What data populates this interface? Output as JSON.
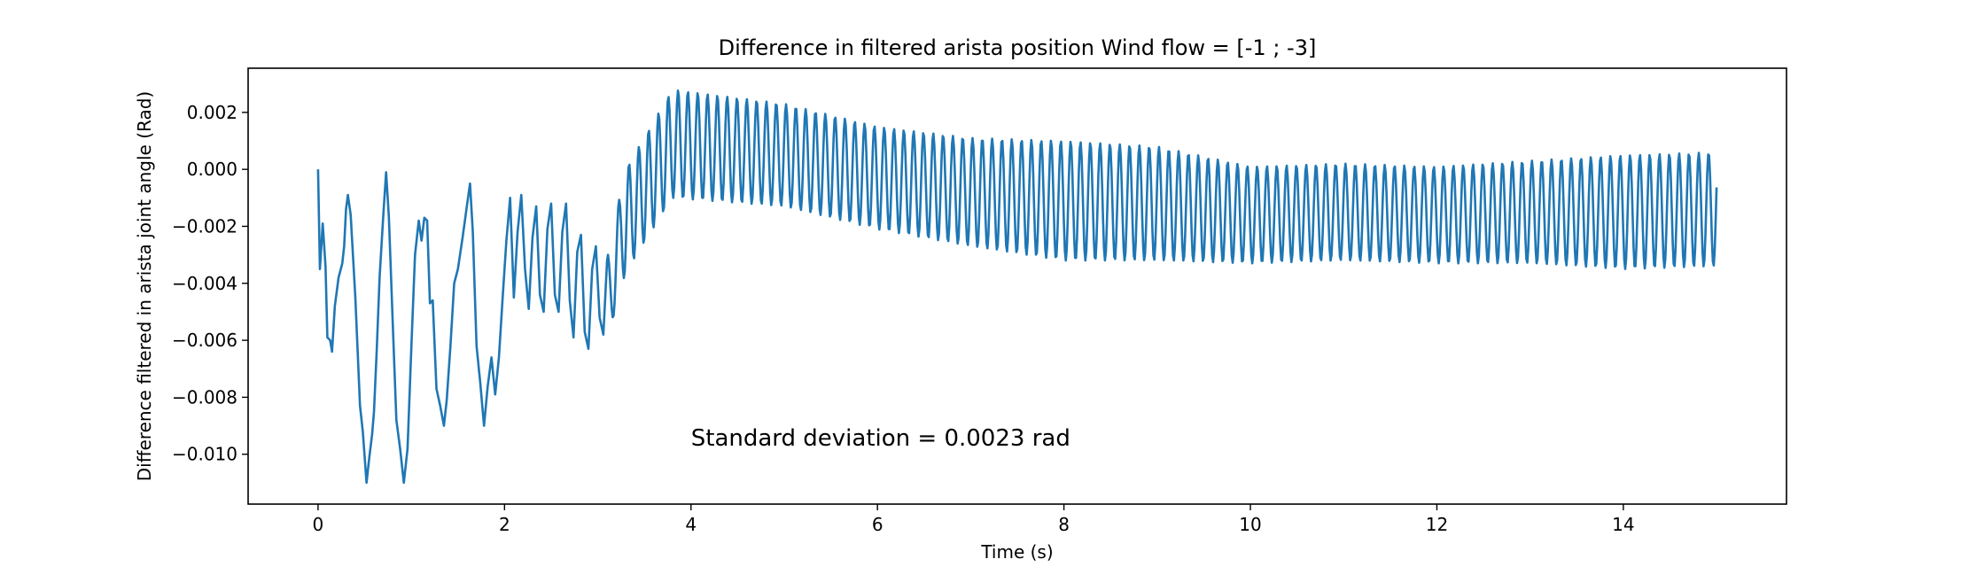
{
  "chart_data": {
    "type": "line",
    "title": "Difference in filtered arista position Wind flow = [-1 ; -3]",
    "xlabel": "Time (s)",
    "ylabel": "Difference filtered in arista joint angle (Rad)",
    "xlim": [
      -0.75,
      15.75
    ],
    "ylim": [
      -0.01175,
      0.00355
    ],
    "x_ticks": [
      0,
      2,
      4,
      6,
      8,
      10,
      12,
      14
    ],
    "x_tick_labels": [
      "0",
      "2",
      "4",
      "6",
      "8",
      "10",
      "12",
      "14"
    ],
    "y_ticks": [
      -0.01,
      -0.008,
      -0.006,
      -0.004,
      -0.002,
      0.0,
      0.002
    ],
    "y_tick_labels": [
      "−0.010",
      "−0.008",
      "−0.006",
      "−0.004",
      "−0.002",
      "0.000",
      "0.002"
    ],
    "grid": false,
    "annotations": [
      {
        "text": "Standard deviation = 0.0023 rad",
        "x": 4.0,
        "y": -0.0097
      }
    ],
    "series": [
      {
        "color": "#1f77b4",
        "sample_rate_hz": 100,
        "x": [
          0,
          15.0
        ],
        "oscillation": {
          "frequency_hz_by_time": [
            [
              0,
              7
            ],
            [
              3.1,
              7
            ],
            [
              3.3,
              9.5
            ],
            [
              15.0,
              9.5
            ]
          ],
          "center_by_time": [
            [
              3.1,
              -0.0045
            ],
            [
              3.3,
              -0.0018
            ],
            [
              3.8,
              0.0009
            ],
            [
              5.0,
              0.0005
            ],
            [
              6.0,
              -0.0003
            ],
            [
              7.0,
              -0.0008
            ],
            [
              8.0,
              -0.0011
            ],
            [
              9.0,
              -0.0012
            ],
            [
              10.0,
              -0.0016
            ],
            [
              11.0,
              -0.0015
            ],
            [
              12.0,
              -0.0016
            ],
            [
              13.0,
              -0.0015
            ],
            [
              14.0,
              -0.0015
            ],
            [
              15.0,
              -0.0014
            ]
          ],
          "amplitude_by_time": [
            [
              3.1,
              0.0015
            ],
            [
              3.3,
              0.0018
            ],
            [
              3.8,
              0.0019
            ],
            [
              5.0,
              0.0018
            ],
            [
              6.0,
              0.0018
            ],
            [
              7.0,
              0.0019
            ],
            [
              8.0,
              0.0021
            ],
            [
              9.0,
              0.002
            ],
            [
              10.0,
              0.0017
            ],
            [
              11.0,
              0.0017
            ],
            [
              12.0,
              0.0017
            ],
            [
              13.0,
              0.0018
            ],
            [
              14.0,
              0.002
            ],
            [
              15.0,
              0.002
            ]
          ]
        },
        "points": [
          [
            0.0,
            0.0
          ],
          [
            0.02,
            -0.0035
          ],
          [
            0.05,
            -0.002
          ],
          [
            0.08,
            -0.0035
          ],
          [
            0.1,
            -0.006
          ],
          [
            0.13,
            -0.0062
          ],
          [
            0.15,
            -0.0064
          ],
          [
            0.2,
            -0.0045
          ],
          [
            0.25,
            -0.0038
          ],
          [
            0.3,
            -0.0025
          ],
          [
            0.3,
            -0.0025
          ],
          [
            0.3,
            -0.0025
          ],
          [
            0.3,
            -0.0025
          ],
          [
            0.3,
            -0.0025
          ],
          [
            0.3,
            -0.0025
          ],
          [
            0.3,
            -0.0025
          ],
          [
            0.3,
            -0.0025
          ],
          [
            0.3,
            -0.0025
          ],
          [
            0.3,
            -0.0025
          ],
          [
            0.3,
            -0.0025
          ],
          [
            0.3,
            -0.0025
          ],
          [
            0.3,
            -0.0025
          ],
          [
            0.3,
            -0.0025
          ],
          [
            0.3,
            -0.0025
          ],
          [
            0.3,
            -0.0025
          ],
          [
            0.3,
            -0.0025
          ],
          [
            0.3,
            -0.0025
          ],
          [
            0.3,
            -0.0025
          ],
          [
            0.3,
            -0.0025
          ],
          [
            0.3,
            -0.0025
          ],
          [
            0.3,
            -0.0025
          ],
          [
            0.3,
            -0.0025
          ],
          [
            0.3,
            -0.0025
          ],
          [
            0.3,
            -0.0025
          ],
          [
            0.3,
            -0.0025
          ],
          [
            0.3,
            -0.0025
          ],
          [
            0.3,
            -0.0025
          ],
          [
            0.3,
            -0.0025
          ],
          [
            0.3,
            -0.0025
          ],
          [
            0.3,
            -0.0025
          ],
          [
            0.3,
            -0.0025
          ],
          [
            0.3,
            -0.0025
          ],
          [
            0.3,
            -0.0025
          ],
          [
            0.3,
            -0.0025
          ],
          [
            0.3,
            -0.0025
          ],
          [
            0.3,
            -0.0025
          ],
          [
            0.3,
            -0.0025
          ],
          [
            0.3,
            -0.0025
          ],
          [
            0.3,
            -0.0025
          ],
          [
            0.3,
            -0.0025
          ],
          [
            0.3,
            -0.0025
          ],
          [
            0.3,
            -0.0025
          ],
          [
            0.3,
            -0.0025
          ],
          [
            0.3,
            -0.0025
          ],
          [
            0.3,
            -0.0025
          ],
          [
            0.3,
            -0.0025
          ],
          [
            0.3,
            -0.0025
          ],
          [
            0.3,
            -0.0025
          ],
          [
            0.3,
            -0.0025
          ],
          [
            0.3,
            -0.0025
          ],
          [
            0.3,
            -0.0025
          ],
          [
            0.3,
            -0.0025
          ],
          [
            0.3,
            -0.0025
          ],
          [
            0.3,
            -0.0025
          ],
          [
            0.3,
            -0.0025
          ],
          [
            0.3,
            -0.0025
          ],
          [
            0.3,
            -0.0025
          ],
          [
            0.3,
            -0.0025
          ],
          [
            0.3,
            -0.0025
          ],
          [
            0.3,
            -0.0025
          ],
          [
            0.3,
            -0.0025
          ],
          [
            0.3,
            -0.0025
          ],
          [
            0.3,
            -0.0025
          ],
          [
            0.3,
            -0.0025
          ],
          [
            0.3,
            -0.0025
          ],
          [
            0.3,
            -0.0025
          ],
          [
            0.3,
            -0.0025
          ],
          [
            0.3,
            -0.0025
          ],
          [
            0.3,
            -0.0025
          ],
          [
            0.3,
            -0.0025
          ],
          [
            0.3,
            -0.0025
          ],
          [
            0.3,
            -0.0025
          ],
          [
            0.3,
            -0.0025
          ],
          [
            0.3,
            -0.0025
          ],
          [
            0.3,
            -0.0025
          ],
          [
            0.3,
            -0.0025
          ],
          [
            0.3,
            -0.0025
          ],
          [
            0.3,
            -0.0025
          ],
          [
            0.3,
            -0.0025
          ],
          [
            0.3,
            -0.0025
          ],
          [
            0.3,
            -0.0025
          ],
          [
            0.3,
            -0.0025
          ],
          [
            0.3,
            -0.0025
          ],
          [
            0.3,
            -0.0025
          ],
          [
            0.3,
            -0.0025
          ],
          [
            0.3,
            -0.0025
          ],
          [
            0.3,
            -0.0025
          ],
          [
            0.3,
            -0.0025
          ],
          [
            0.3,
            -0.0025
          ],
          [
            0.3,
            -0.0025
          ],
          [
            0.3,
            -0.0025
          ],
          [
            0.3,
            -0.0025
          ],
          [
            0.3,
            -0.0025
          ],
          [
            0.3,
            -0.0025
          ],
          [
            0.3,
            -0.0025
          ],
          [
            0.3,
            -0.0025
          ],
          [
            0.3,
            -0.0025
          ],
          [
            0.3,
            -0.0025
          ],
          [
            0.3,
            -0.0025
          ],
          [
            0.3,
            -0.0025
          ],
          [
            0.3,
            -0.0025
          ],
          [
            0.3,
            -0.0025
          ],
          [
            0.3,
            -0.0025
          ],
          [
            0.3,
            -0.0025
          ],
          [
            0.3,
            -0.0025
          ],
          [
            0.3,
            -0.0025
          ],
          [
            0.3,
            -0.0025
          ],
          [
            0.3,
            -0.0025
          ],
          [
            0.3,
            -0.0025
          ],
          [
            0.3,
            -0.0025
          ],
          [
            0.3,
            -0.0025
          ],
          [
            0.3,
            -0.0025
          ]
        ],
        "early_points": [
          [
            0.0,
            0.0
          ],
          [
            0.02,
            -0.0035
          ],
          [
            0.05,
            -0.0019
          ],
          [
            0.08,
            -0.0034
          ],
          [
            0.1,
            -0.0059
          ],
          [
            0.13,
            -0.006
          ],
          [
            0.15,
            -0.0064
          ],
          [
            0.18,
            -0.0048
          ],
          [
            0.22,
            -0.0038
          ],
          [
            0.26,
            -0.0033
          ],
          [
            0.28,
            -0.0027
          ],
          [
            0.3,
            -0.0014
          ],
          [
            0.32,
            -0.0009
          ],
          [
            0.35,
            -0.0016
          ],
          [
            0.4,
            -0.0045
          ],
          [
            0.45,
            -0.0083
          ],
          [
            0.48,
            -0.0092
          ],
          [
            0.52,
            -0.011
          ],
          [
            0.55,
            -0.0101
          ],
          [
            0.58,
            -0.0093
          ],
          [
            0.6,
            -0.0085
          ],
          [
            0.63,
            -0.0063
          ],
          [
            0.66,
            -0.0038
          ],
          [
            0.7,
            -0.0016
          ],
          [
            0.73,
            -0.0001
          ],
          [
            0.76,
            -0.0017
          ],
          [
            0.8,
            -0.0053
          ],
          [
            0.84,
            -0.0088
          ],
          [
            0.88,
            -0.0098
          ],
          [
            0.92,
            -0.011
          ],
          [
            0.96,
            -0.0098
          ],
          [
            1.0,
            -0.0063
          ],
          [
            1.04,
            -0.003
          ],
          [
            1.08,
            -0.0018
          ],
          [
            1.11,
            -0.0025
          ],
          [
            1.14,
            -0.0017
          ],
          [
            1.17,
            -0.0018
          ],
          [
            1.2,
            -0.0047
          ],
          [
            1.23,
            -0.0046
          ],
          [
            1.27,
            -0.0077
          ],
          [
            1.31,
            -0.0083
          ],
          [
            1.35,
            -0.009
          ],
          [
            1.38,
            -0.0081
          ],
          [
            1.42,
            -0.0062
          ],
          [
            1.46,
            -0.004
          ],
          [
            1.5,
            -0.0035
          ],
          [
            1.55,
            -0.0024
          ],
          [
            1.6,
            -0.0012
          ],
          [
            1.63,
            -0.0005
          ],
          [
            1.66,
            -0.0022
          ],
          [
            1.7,
            -0.0062
          ],
          [
            1.74,
            -0.0075
          ],
          [
            1.78,
            -0.009
          ],
          [
            1.82,
            -0.0076
          ],
          [
            1.86,
            -0.0066
          ],
          [
            1.9,
            -0.0079
          ],
          [
            1.94,
            -0.0066
          ],
          [
            1.98,
            -0.0045
          ],
          [
            2.02,
            -0.0025
          ],
          [
            2.06,
            -0.001
          ],
          [
            2.1,
            -0.0045
          ],
          [
            2.14,
            -0.0022
          ],
          [
            2.18,
            -0.0009
          ],
          [
            2.22,
            -0.0035
          ],
          [
            2.26,
            -0.0049
          ],
          [
            2.3,
            -0.0024
          ],
          [
            2.34,
            -0.0013
          ],
          [
            2.38,
            -0.0044
          ],
          [
            2.42,
            -0.005
          ],
          [
            2.46,
            -0.0021
          ],
          [
            2.5,
            -0.0012
          ],
          [
            2.54,
            -0.0044
          ],
          [
            2.58,
            -0.005
          ],
          [
            2.62,
            -0.0022
          ],
          [
            2.66,
            -0.0012
          ],
          [
            2.7,
            -0.0046
          ],
          [
            2.74,
            -0.0059
          ],
          [
            2.78,
            -0.0029
          ],
          [
            2.82,
            -0.0023
          ],
          [
            2.86,
            -0.0057
          ],
          [
            2.9,
            -0.0063
          ],
          [
            2.94,
            -0.0035
          ],
          [
            2.98,
            -0.0027
          ],
          [
            3.02,
            -0.0052
          ],
          [
            3.06,
            -0.0058
          ],
          [
            3.1,
            -0.0032
          ]
        ]
      }
    ]
  }
}
